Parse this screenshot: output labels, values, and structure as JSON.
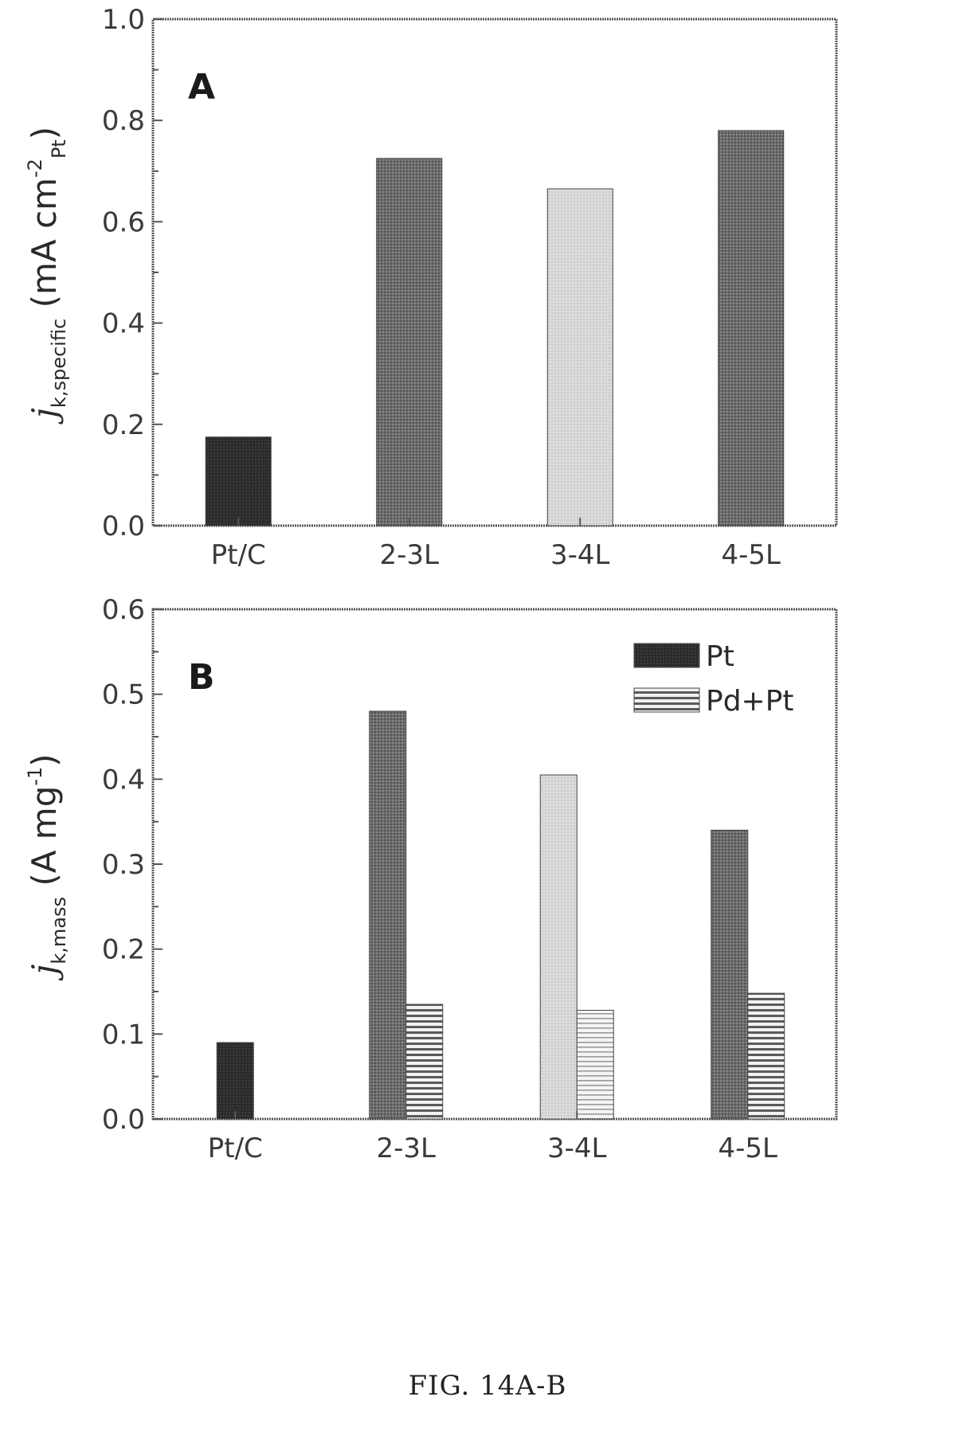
{
  "caption": "FIG. 14A-B",
  "chart_data": [
    {
      "type": "bar",
      "panel_label": "A",
      "categories": [
        "Pt/C",
        "2-3L",
        "3-4L",
        "4-5L"
      ],
      "values": [
        0.175,
        0.725,
        0.665,
        0.78
      ],
      "bar_fills": [
        "dark",
        "medium",
        "light",
        "medium"
      ],
      "ylim": [
        0,
        1.0
      ],
      "yticks": [
        "0.0",
        "0.2",
        "0.4",
        "0.6",
        "0.8",
        "1.0"
      ],
      "ylabel": {
        "symbol": "j",
        "subscript": "k,specific",
        "unit": "(mA cm",
        "superscript": "-2",
        "unit_subscript": "Pt",
        "close": ")"
      },
      "xlabel": ""
    },
    {
      "type": "bar",
      "panel_label": "B",
      "categories": [
        "Pt/C",
        "2-3L",
        "3-4L",
        "4-5L"
      ],
      "series": [
        {
          "name": "Pt",
          "values": [
            0.09,
            0.48,
            0.405,
            0.34
          ],
          "bar_fills": [
            "dark",
            "medium",
            "light",
            "medium"
          ]
        },
        {
          "name": "Pd+Pt",
          "values": [
            null,
            0.135,
            0.128,
            0.148
          ],
          "bar_fills": [
            "stripe",
            "stripe",
            "stripe-light",
            "stripe"
          ]
        }
      ],
      "ylim": [
        0,
        0.6
      ],
      "yticks": [
        "0.0",
        "0.1",
        "0.2",
        "0.3",
        "0.4",
        "0.5",
        "0.6"
      ],
      "ylabel": {
        "symbol": "j",
        "subscript": "k,mass",
        "unit": "(A mg",
        "superscript": "-1",
        "close": ")"
      },
      "legend_position": "top-right",
      "xlabel": ""
    }
  ],
  "colors": {
    "axis": "#555555",
    "dark": "#2b2b2b",
    "medium": "#6c6c6c",
    "light": "#d2d2d2",
    "stripe_line": "#555555",
    "stripe_bg": "#f2f2f2"
  }
}
